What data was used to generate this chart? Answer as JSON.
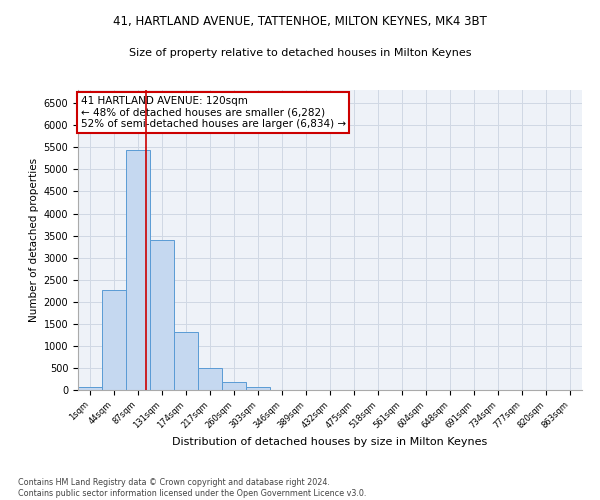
{
  "title_line1": "41, HARTLAND AVENUE, TATTENHOE, MILTON KEYNES, MK4 3BT",
  "title_line2": "Size of property relative to detached houses in Milton Keynes",
  "xlabel": "Distribution of detached houses by size in Milton Keynes",
  "ylabel": "Number of detached properties",
  "bar_labels": [
    "1sqm",
    "44sqm",
    "87sqm",
    "131sqm",
    "174sqm",
    "217sqm",
    "260sqm",
    "303sqm",
    "346sqm",
    "389sqm",
    "432sqm",
    "475sqm",
    "518sqm",
    "561sqm",
    "604sqm",
    "648sqm",
    "691sqm",
    "734sqm",
    "777sqm",
    "820sqm",
    "863sqm"
  ],
  "bar_values": [
    75,
    2275,
    5450,
    3400,
    1320,
    500,
    190,
    75,
    0,
    0,
    0,
    0,
    0,
    0,
    0,
    0,
    0,
    0,
    0,
    0,
    0
  ],
  "bar_color": "#c5d8f0",
  "bar_edge_color": "#5a9bd5",
  "grid_color": "#d0d8e4",
  "background_color": "#eef2f8",
  "red_line_x": 2.33,
  "annotation_text": "41 HARTLAND AVENUE: 120sqm\n← 48% of detached houses are smaller (6,282)\n52% of semi-detached houses are larger (6,834) →",
  "annotation_box_color": "#ffffff",
  "annotation_box_edge": "#cc0000",
  "annotation_fontsize": 7.5,
  "red_line_color": "#cc0000",
  "ylim": [
    0,
    6800
  ],
  "yticks": [
    0,
    500,
    1000,
    1500,
    2000,
    2500,
    3000,
    3500,
    4000,
    4500,
    5000,
    5500,
    6000,
    6500
  ],
  "footer_line1": "Contains HM Land Registry data © Crown copyright and database right 2024.",
  "footer_line2": "Contains public sector information licensed under the Open Government Licence v3.0."
}
